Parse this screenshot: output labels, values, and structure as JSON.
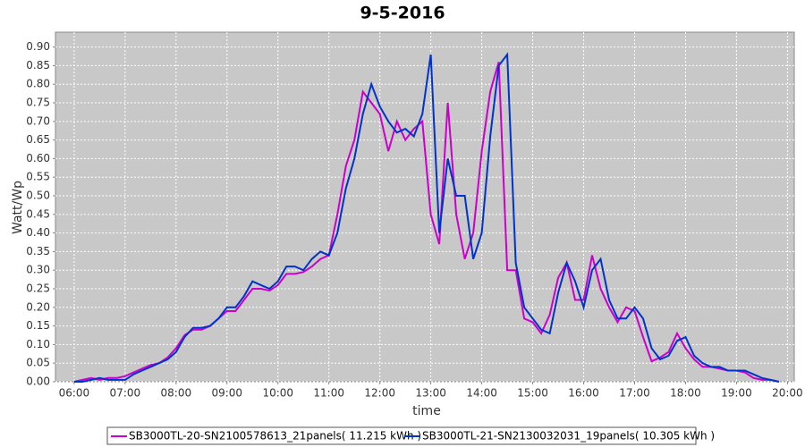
{
  "chart_data": {
    "type": "line",
    "title": "9-5-2016",
    "x_label": "time",
    "y_label": "Watt/Wp",
    "grid": true,
    "legend": "bottom",
    "xlim": [
      "05:38",
      "20:08"
    ],
    "xticks": [
      "06:00",
      "07:00",
      "08:00",
      "09:00",
      "10:00",
      "11:00",
      "12:00",
      "13:00",
      "14:00",
      "15:00",
      "16:00",
      "17:00",
      "18:00",
      "19:00",
      "20:00"
    ],
    "ylim": [
      0,
      0.94
    ],
    "yticks": [
      {
        "value": 0,
        "label": "0.00"
      },
      {
        "value": 0.05,
        "label": "0.05"
      },
      {
        "value": 0.1,
        "label": "0.10"
      },
      {
        "value": 0.15,
        "label": "0.15"
      },
      {
        "value": 0.2,
        "label": "0.20"
      },
      {
        "value": 0.25,
        "label": "0.25"
      },
      {
        "value": 0.3,
        "label": "0.30"
      },
      {
        "value": 0.35,
        "label": "0.35"
      },
      {
        "value": 0.4,
        "label": "0.40"
      },
      {
        "value": 0.45,
        "label": "0.45"
      },
      {
        "value": 0.5,
        "label": "0.50"
      },
      {
        "value": 0.55,
        "label": "0.55"
      },
      {
        "value": 0.6,
        "label": "0.60"
      },
      {
        "value": 0.65,
        "label": "0.65"
      },
      {
        "value": 0.7,
        "label": "0.70"
      },
      {
        "value": 0.75,
        "label": "0.75"
      },
      {
        "value": 0.8,
        "label": "0.80"
      },
      {
        "value": 0.85,
        "label": "0.85"
      },
      {
        "value": 0.9,
        "label": "0.90"
      }
    ],
    "x": [
      "06:00",
      "06:10",
      "06:20",
      "06:30",
      "06:40",
      "06:50",
      "07:00",
      "07:10",
      "07:20",
      "07:30",
      "07:40",
      "07:50",
      "08:00",
      "08:10",
      "08:20",
      "08:30",
      "08:40",
      "08:50",
      "09:00",
      "09:10",
      "09:20",
      "09:30",
      "09:40",
      "09:50",
      "10:00",
      "10:10",
      "10:20",
      "10:30",
      "10:40",
      "10:50",
      "11:00",
      "11:10",
      "11:20",
      "11:30",
      "11:40",
      "11:50",
      "12:00",
      "12:10",
      "12:20",
      "12:30",
      "12:40",
      "12:50",
      "13:00",
      "13:10",
      "13:20",
      "13:30",
      "13:40",
      "13:50",
      "14:00",
      "14:10",
      "14:20",
      "14:30",
      "14:40",
      "14:50",
      "15:00",
      "15:10",
      "15:20",
      "15:30",
      "15:40",
      "15:50",
      "16:00",
      "16:10",
      "16:20",
      "16:30",
      "16:40",
      "16:50",
      "17:00",
      "17:10",
      "17:20",
      "17:30",
      "17:40",
      "17:50",
      "18:00",
      "18:10",
      "18:20",
      "18:30",
      "18:40",
      "18:50",
      "19:00",
      "19:10",
      "19:20",
      "19:30",
      "19:40",
      "19:50"
    ],
    "series": [
      {
        "name": "SB3000TL-20-SN2100578613_21panels( 11.215 kWh )",
        "color": "#cc00cc",
        "values": [
          0,
          0.005,
          0.01,
          0.005,
          0.01,
          0.01,
          0.015,
          0.025,
          0.035,
          0.045,
          0.05,
          0.065,
          0.09,
          0.125,
          0.14,
          0.14,
          0.15,
          0.17,
          0.19,
          0.19,
          0.22,
          0.25,
          0.25,
          0.245,
          0.26,
          0.29,
          0.29,
          0.295,
          0.31,
          0.33,
          0.34,
          0.45,
          0.58,
          0.65,
          0.78,
          0.75,
          0.72,
          0.62,
          0.7,
          0.65,
          0.68,
          0.7,
          0.45,
          0.37,
          0.75,
          0.45,
          0.33,
          0.4,
          0.62,
          0.78,
          0.86,
          0.3,
          0.3,
          0.17,
          0.16,
          0.13,
          0.18,
          0.28,
          0.32,
          0.22,
          0.22,
          0.34,
          0.25,
          0.2,
          0.16,
          0.2,
          0.19,
          0.12,
          0.055,
          0.065,
          0.08,
          0.13,
          0.09,
          0.06,
          0.04,
          0.04,
          0.035,
          0.03,
          0.03,
          0.025,
          0.01,
          0.005,
          0.005,
          0
        ]
      },
      {
        "name": "SB3000TL-21-SN2130032031_19panels( 10.305 kWh )",
        "color": "#0033cc",
        "values": [
          0,
          0,
          0.005,
          0.01,
          0.005,
          0.005,
          0.005,
          0.02,
          0.03,
          0.04,
          0.05,
          0.06,
          0.08,
          0.12,
          0.145,
          0.145,
          0.15,
          0.17,
          0.2,
          0.2,
          0.23,
          0.27,
          0.26,
          0.25,
          0.27,
          0.31,
          0.31,
          0.3,
          0.33,
          0.35,
          0.34,
          0.4,
          0.52,
          0.6,
          0.72,
          0.8,
          0.74,
          0.7,
          0.67,
          0.68,
          0.66,
          0.72,
          0.88,
          0.4,
          0.6,
          0.5,
          0.5,
          0.33,
          0.4,
          0.66,
          0.85,
          0.88,
          0.32,
          0.2,
          0.17,
          0.14,
          0.13,
          0.24,
          0.32,
          0.27,
          0.2,
          0.3,
          0.33,
          0.22,
          0.17,
          0.17,
          0.2,
          0.17,
          0.09,
          0.06,
          0.07,
          0.11,
          0.12,
          0.07,
          0.05,
          0.04,
          0.04,
          0.03,
          0.03,
          0.03,
          0.02,
          0.01,
          0.005,
          0
        ]
      }
    ]
  }
}
